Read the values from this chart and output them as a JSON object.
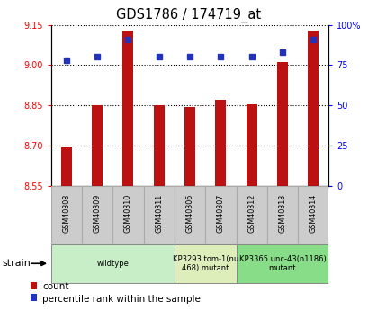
{
  "title": "GDS1786 / 174719_at",
  "samples": [
    "GSM40308",
    "GSM40309",
    "GSM40310",
    "GSM40311",
    "GSM40306",
    "GSM40307",
    "GSM40312",
    "GSM40313",
    "GSM40314"
  ],
  "counts": [
    8.695,
    8.85,
    9.13,
    8.85,
    8.843,
    8.87,
    8.855,
    9.01,
    9.13
  ],
  "percentiles": [
    78,
    80,
    91,
    80,
    80,
    80,
    80,
    83,
    91
  ],
  "ylim_left": [
    8.55,
    9.15
  ],
  "ylim_right": [
    0,
    100
  ],
  "yticks_left": [
    8.55,
    8.7,
    8.85,
    9.0,
    9.15
  ],
  "yticks_right": [
    0,
    25,
    50,
    75,
    100
  ],
  "bar_color": "#bb1111",
  "dot_color": "#2233bb",
  "groups": [
    {
      "label": "wildtype",
      "start": 0,
      "end": 4,
      "color": "#c8eec8"
    },
    {
      "label": "KP3293 tom-1(nu\n468) mutant",
      "start": 4,
      "end": 6,
      "color": "#ddeebb"
    },
    {
      "label": "KP3365 unc-43(n1186)\nmutant",
      "start": 6,
      "end": 9,
      "color": "#88dd88"
    }
  ],
  "strain_label": "strain",
  "legend_count": "count",
  "legend_percentile": "percentile rank within the sample",
  "bar_width": 0.35,
  "base_value": 8.55,
  "sample_box_color": "#cccccc",
  "sample_box_edge": "#aaaaaa"
}
